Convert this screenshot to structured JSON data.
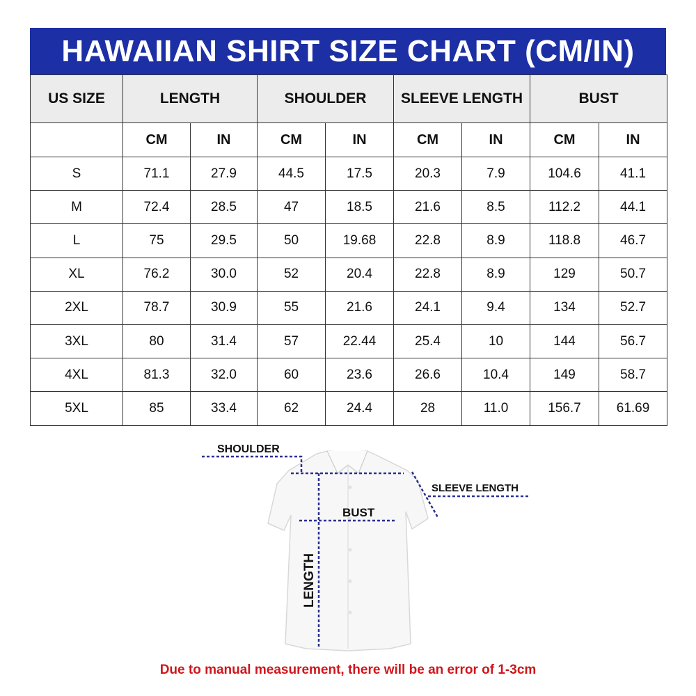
{
  "title": "HAWAIIAN SHIRT SIZE CHART (CM/IN)",
  "colors": {
    "header_bg": "#1d2fa5",
    "note": "#d0161b",
    "measure_line": "#2b2f8f"
  },
  "table": {
    "group_headers": [
      "US SIZE",
      "LENGTH",
      "SHOULDER",
      "SLEEVE LENGTH",
      "BUST"
    ],
    "unit_headers": [
      "CM",
      "IN",
      "CM",
      "IN",
      "CM",
      "IN",
      "CM",
      "IN"
    ],
    "rows": [
      [
        "S",
        "71.1",
        "27.9",
        "44.5",
        "17.5",
        "20.3",
        "7.9",
        "104.6",
        "41.1"
      ],
      [
        "M",
        "72.4",
        "28.5",
        "47",
        "18.5",
        "21.6",
        "8.5",
        "112.2",
        "44.1"
      ],
      [
        "L",
        "75",
        "29.5",
        "50",
        "19.68",
        "22.8",
        "8.9",
        "118.8",
        "46.7"
      ],
      [
        "XL",
        "76.2",
        "30.0",
        "52",
        "20.4",
        "22.8",
        "8.9",
        "129",
        "50.7"
      ],
      [
        "2XL",
        "78.7",
        "30.9",
        "55",
        "21.6",
        "24.1",
        "9.4",
        "134",
        "52.7"
      ],
      [
        "3XL",
        "80",
        "31.4",
        "57",
        "22.44",
        "25.4",
        "10",
        "144",
        "56.7"
      ],
      [
        "4XL",
        "81.3",
        "32.0",
        "60",
        "23.6",
        "26.6",
        "10.4",
        "149",
        "58.7"
      ],
      [
        "5XL",
        "85",
        "33.4",
        "62",
        "24.4",
        "28",
        "11.0",
        "156.7",
        "61.69"
      ]
    ]
  },
  "diagram": {
    "shoulder": "SHOULDER",
    "sleeve_length": "SLEEVE LENGTH",
    "bust": "BUST",
    "length": "LENGTH"
  },
  "note": "Due to manual measurement, there will be an error of 1-3cm"
}
